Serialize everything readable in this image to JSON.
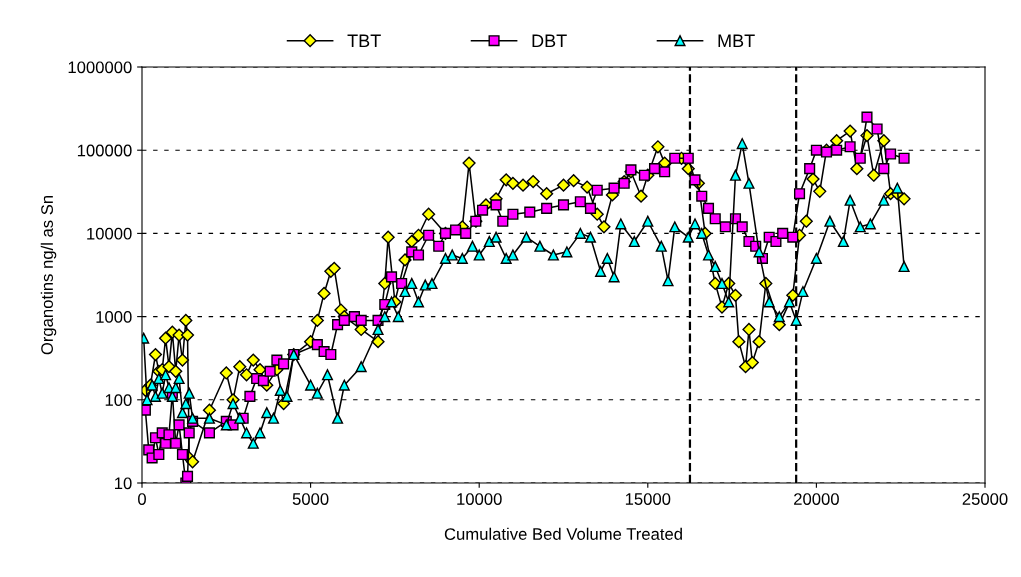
{
  "chart_data": {
    "type": "line",
    "xlabel": "Cumulative Bed Volume Treated",
    "ylabel": "Organotins ng/l as Sn",
    "log": "y",
    "grid": "y",
    "legend": "top",
    "xlim": [
      0,
      25000
    ],
    "xticks": [
      0,
      5000,
      10000,
      15000,
      20000,
      25000
    ],
    "ylim": [
      10,
      1000000
    ],
    "yticks": [
      10,
      100,
      1000,
      10000,
      100000,
      1000000
    ],
    "ref_lines": [
      {
        "axis": "x",
        "value": 16250,
        "color": "#000000",
        "line_style": "dashed"
      },
      {
        "axis": "x",
        "value": 19400,
        "color": "#000000",
        "line_style": "dashed"
      }
    ],
    "series": [
      {
        "name": "TBT",
        "color": "#ffff00",
        "marker": "diamond",
        "line_style": "solid",
        "x": [
          100,
          250,
          400,
          500,
          600,
          700,
          800,
          900,
          1000,
          1100,
          1200,
          1300,
          1350,
          1400,
          1500,
          2000,
          2500,
          2700,
          2900,
          3100,
          3300,
          3500,
          3700,
          4000,
          4200,
          4500,
          5000,
          5200,
          5400,
          5600,
          5700,
          5900,
          6000,
          6500,
          7000,
          7200,
          7300,
          7500,
          7800,
          8000,
          8200,
          8500,
          9000,
          9500,
          9700,
          9900,
          10200,
          10500,
          10800,
          11000,
          11300,
          11600,
          12000,
          12500,
          12800,
          13200,
          13500,
          13700,
          13950,
          14300,
          14500,
          14800,
          15000,
          15300,
          15500,
          16000,
          16200,
          16500,
          16700,
          17000,
          17200,
          17400,
          17600,
          17700,
          17900,
          18000,
          18100,
          18300,
          18500,
          18900,
          19300,
          19500,
          19700,
          19900,
          20100,
          20300,
          20600,
          21000,
          21200,
          21500,
          21700,
          22000,
          22200,
          22400,
          22600
        ],
        "values": [
          130,
          150,
          350,
          220,
          230,
          550,
          250,
          650,
          220,
          600,
          300,
          900,
          600,
          20,
          18,
          75,
          210,
          100,
          250,
          200,
          300,
          230,
          150,
          230,
          90,
          350,
          500,
          900,
          1900,
          3500,
          3800,
          1200,
          1000,
          700,
          500,
          2500,
          9000,
          1500,
          4800,
          8000,
          9500,
          17000,
          10000,
          12000,
          70000,
          14000,
          22000,
          26000,
          44000,
          40000,
          38000,
          42000,
          30000,
          38000,
          43000,
          36000,
          17000,
          12000,
          29000,
          42000,
          55000,
          28000,
          50000,
          110000,
          70000,
          80000,
          60000,
          40000,
          10000,
          2500,
          1300,
          2500,
          1800,
          500,
          250,
          700,
          280,
          500,
          2500,
          800,
          1800,
          9500,
          14000,
          45000,
          32000,
          100000,
          130000,
          170000,
          60000,
          150000,
          50000,
          130000,
          30000,
          30000,
          26000
        ]
      },
      {
        "name": "DBT",
        "color": "#ff00ff",
        "marker": "square",
        "line_style": "solid",
        "x": [
          100,
          200,
          300,
          400,
          500,
          600,
          700,
          800,
          900,
          1000,
          1100,
          1200,
          1300,
          1350,
          1400,
          1500,
          2000,
          2500,
          2700,
          3000,
          3200,
          3400,
          3600,
          3800,
          4000,
          4200,
          4500,
          5200,
          5400,
          5600,
          5800,
          6000,
          6300,
          6500,
          7000,
          7200,
          7400,
          7700,
          8000,
          8200,
          8500,
          8800,
          9000,
          9300,
          9600,
          9900,
          10100,
          10500,
          10700,
          11000,
          11500,
          12000,
          12500,
          13000,
          13300,
          13500,
          14000,
          14300,
          14500,
          14900,
          15200,
          15500,
          15800,
          16200,
          16400,
          16600,
          16800,
          17000,
          17300,
          17600,
          17800,
          18000,
          18200,
          18400,
          18600,
          18800,
          19000,
          19300,
          19500,
          19800,
          20000,
          20300,
          20600,
          21000,
          21300,
          21500,
          21800,
          22000,
          22200,
          22600
        ],
        "values": [
          75,
          25,
          20,
          35,
          22,
          40,
          30,
          38,
          120,
          30,
          50,
          22,
          10,
          12,
          40,
          55,
          40,
          55,
          50,
          60,
          110,
          180,
          170,
          220,
          300,
          270,
          350,
          460,
          380,
          350,
          800,
          900,
          1000,
          900,
          900,
          1400,
          3000,
          2500,
          6000,
          5500,
          9500,
          7000,
          10000,
          11000,
          10000,
          14000,
          19000,
          22000,
          14000,
          17000,
          18000,
          20000,
          22000,
          24000,
          20000,
          33000,
          35000,
          40000,
          58000,
          50000,
          60000,
          55000,
          80000,
          80000,
          44000,
          28000,
          20000,
          15000,
          12000,
          15000,
          12000,
          8000,
          7000,
          5000,
          9000,
          8000,
          10000,
          9000,
          30000,
          60000,
          100000,
          95000,
          100000,
          110000,
          80000,
          250000,
          180000,
          60000,
          90000,
          80000
        ]
      },
      {
        "name": "MBT",
        "color": "#00ffff",
        "marker": "triangle",
        "line_style": "solid",
        "x": [
          50,
          150,
          300,
          400,
          500,
          600,
          700,
          800,
          900,
          1000,
          1100,
          1200,
          1300,
          1400,
          1500,
          2000,
          2500,
          2700,
          2900,
          3100,
          3300,
          3500,
          3700,
          3900,
          4100,
          4300,
          4500,
          5000,
          5200,
          5500,
          5800,
          6000,
          6500,
          7000,
          7200,
          7400,
          7600,
          7800,
          8000,
          8200,
          8400,
          8600,
          9000,
          9200,
          9500,
          9800,
          10000,
          10300,
          10500,
          10800,
          11000,
          11400,
          11800,
          12200,
          12600,
          13000,
          13300,
          13600,
          13800,
          14000,
          14200,
          14600,
          15000,
          15400,
          15600,
          15800,
          16200,
          16400,
          16600,
          16800,
          17000,
          17200,
          17400,
          17600,
          17800,
          18000,
          18300,
          18600,
          18900,
          19200,
          19400,
          19600,
          20000,
          20400,
          20800,
          21000,
          21300,
          21600,
          22000,
          22400,
          22600
        ],
        "values": [
          550,
          100,
          150,
          110,
          180,
          120,
          200,
          140,
          110,
          140,
          180,
          70,
          90,
          120,
          60,
          60,
          50,
          90,
          60,
          40,
          30,
          40,
          70,
          60,
          130,
          110,
          350,
          150,
          120,
          200,
          60,
          150,
          250,
          700,
          1000,
          1500,
          1000,
          2000,
          2500,
          1500,
          2400,
          2500,
          5000,
          5500,
          5000,
          7000,
          5500,
          8000,
          9000,
          5000,
          5500,
          9000,
          7000,
          5500,
          6000,
          10000,
          9000,
          3500,
          5000,
          3000,
          13000,
          8000,
          14000,
          7000,
          2700,
          12000,
          9000,
          13000,
          10000,
          5500,
          4000,
          2500,
          1500,
          50000,
          120000,
          40000,
          6000,
          1500,
          1000,
          1500,
          900,
          2000,
          5000,
          14000,
          8000,
          25000,
          12000,
          13000,
          25000,
          35000,
          4000
        ]
      }
    ]
  }
}
